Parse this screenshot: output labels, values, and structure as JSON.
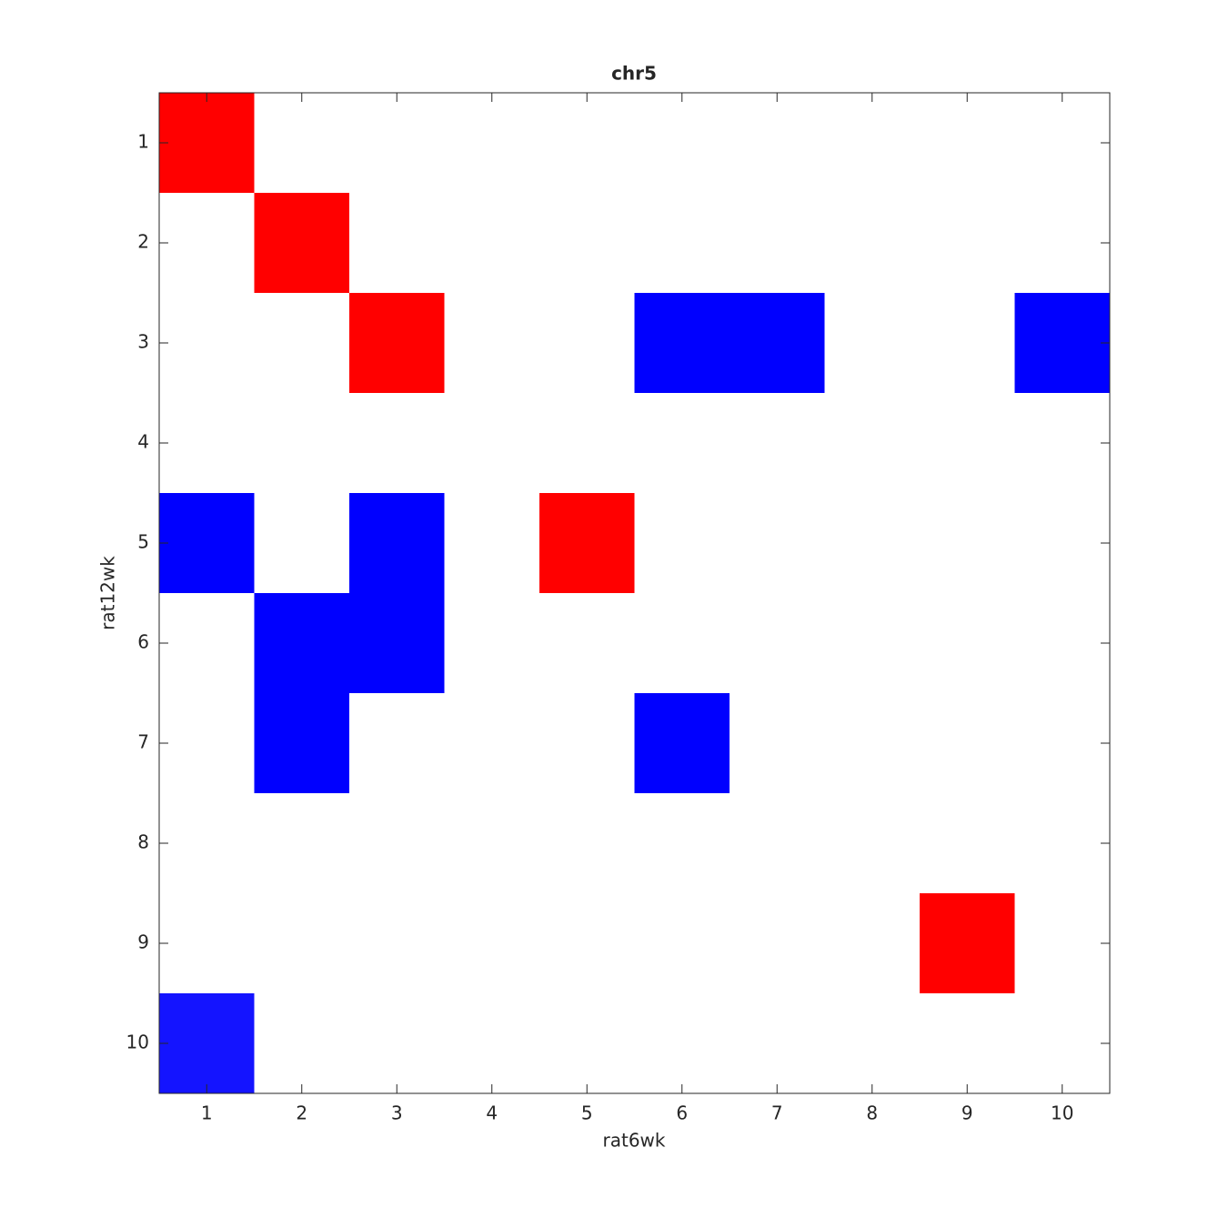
{
  "chart_data": {
    "type": "heatmap",
    "title": "chr5",
    "x_label": "rat6wk",
    "y_label": "rat12wk",
    "xlim": [
      0.5,
      10.5
    ],
    "ylim": [
      0.5,
      10.5
    ],
    "y_reversed": true,
    "xticks": [
      1,
      2,
      3,
      4,
      5,
      6,
      7,
      8,
      9,
      10
    ],
    "yticks": [
      1,
      2,
      3,
      4,
      5,
      6,
      7,
      8,
      9,
      10
    ],
    "clim": [
      -1,
      1
    ],
    "colormap": [
      "#0000ff",
      "#ffffff",
      "#ff0000"
    ],
    "values": [
      [
        1,
        0,
        0,
        0,
        0,
        0,
        0,
        0,
        0,
        0
      ],
      [
        0,
        1,
        0,
        0,
        0,
        0,
        0,
        0,
        0,
        0
      ],
      [
        0,
        0,
        1,
        0,
        0,
        -1,
        -1,
        0,
        0,
        -1
      ],
      [
        0,
        0,
        0,
        0,
        0,
        0,
        0,
        0,
        0,
        0
      ],
      [
        -1,
        0,
        -1,
        0,
        1,
        0,
        0,
        0,
        0,
        0
      ],
      [
        0,
        -1,
        -1,
        0,
        0,
        0,
        0,
        0,
        0,
        0
      ],
      [
        0,
        -1,
        0,
        0,
        0,
        -1,
        0,
        0,
        0,
        0
      ],
      [
        0,
        0,
        0,
        0,
        0,
        0,
        0,
        0,
        0,
        0
      ],
      [
        0,
        0,
        0,
        0,
        0,
        0,
        0,
        0,
        1,
        0
      ],
      [
        -0.92,
        0,
        0,
        0,
        0,
        0,
        0,
        0,
        0,
        0
      ]
    ]
  }
}
